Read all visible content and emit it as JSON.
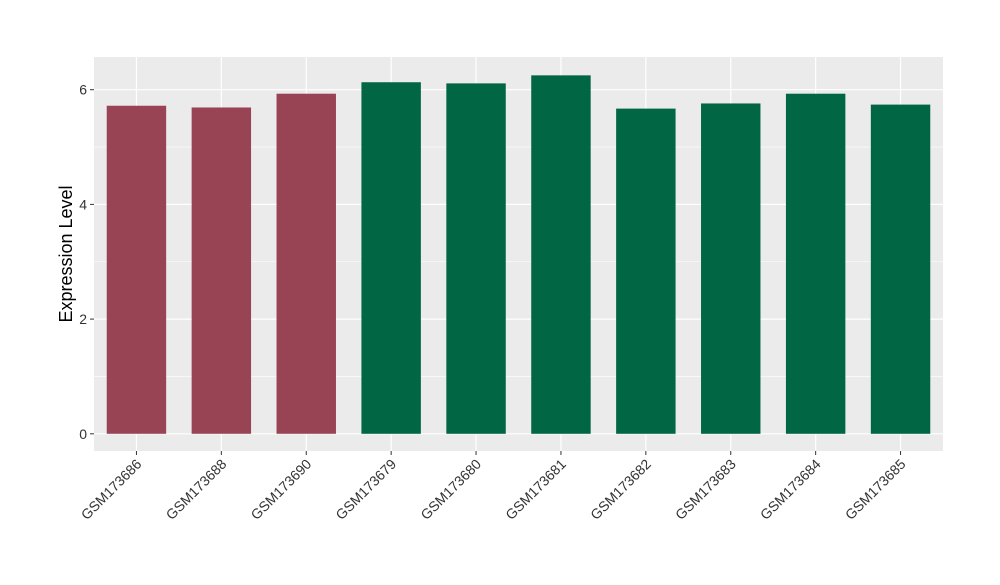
{
  "chart_data": {
    "type": "bar",
    "title": "",
    "xlabel": "",
    "ylabel": "Expression Level",
    "ylim": [
      -0.3,
      6.57
    ],
    "yticks": [
      0,
      2,
      4,
      6
    ],
    "grid": true,
    "legend": "none",
    "categories": [
      "GSM173686",
      "GSM173688",
      "GSM173690",
      "GSM173679",
      "GSM173680",
      "GSM173681",
      "GSM173682",
      "GSM173683",
      "GSM173684",
      "GSM173685"
    ],
    "values": [
      5.72,
      5.69,
      5.93,
      6.13,
      6.11,
      6.25,
      5.67,
      5.76,
      5.93,
      5.74
    ],
    "bar_colors": [
      "#994455",
      "#994455",
      "#994455",
      "#006644",
      "#006644",
      "#006644",
      "#006644",
      "#006644",
      "#006644",
      "#006644"
    ],
    "panel_color": "#ebebeb",
    "grid_color": "#ffffff"
  }
}
